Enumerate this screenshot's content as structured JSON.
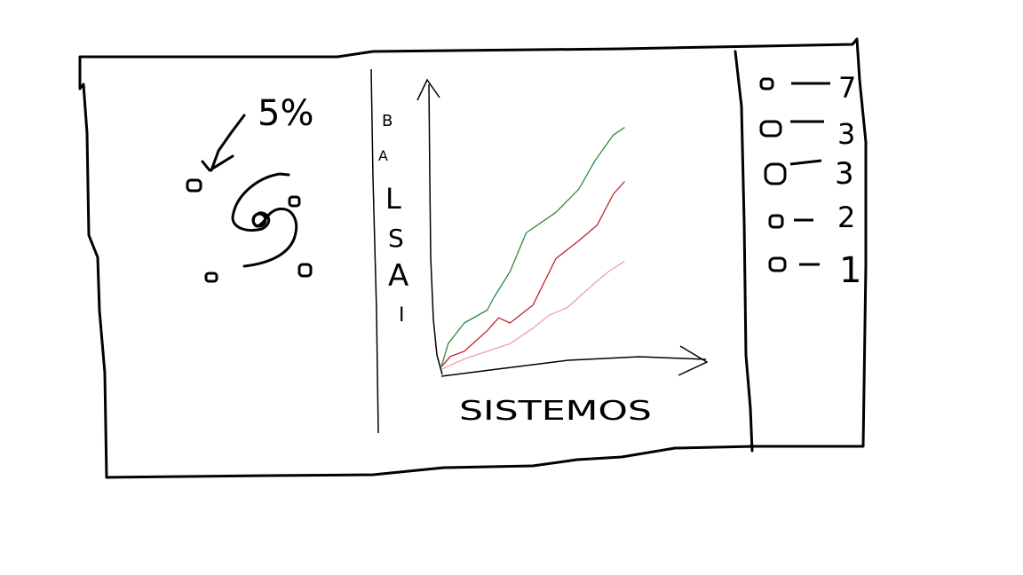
{
  "percent_label": "5%",
  "ylabel_letters": [
    "B",
    "A",
    "L",
    "S",
    "A",
    "I"
  ],
  "xlabel": "SISTEMOS",
  "legend": {
    "items": [
      {
        "value": "7"
      },
      {
        "value": "3"
      },
      {
        "value": "3"
      },
      {
        "value": "2"
      },
      {
        "value": "1"
      }
    ]
  },
  "chart_data": {
    "type": "line",
    "title": "",
    "xlabel": "SISTEMOS",
    "ylabel": "BALSAI",
    "xlim": [
      0,
      10
    ],
    "ylim": [
      0,
      10
    ],
    "series": [
      {
        "color": "#2e8b3a",
        "x": [
          0,
          0.3,
          1,
          2,
          2.3,
          3,
          3.7,
          5,
          6,
          6.7,
          7.5,
          8
        ],
        "y": [
          0.3,
          1.2,
          2,
          2.5,
          3,
          4,
          5.5,
          6.3,
          7.2,
          8.3,
          9.3,
          9.6
        ]
      },
      {
        "color": "#c0202c",
        "x": [
          0,
          0.4,
          1,
          2,
          2.5,
          3,
          4,
          5,
          6,
          6.8,
          7.5,
          8
        ],
        "y": [
          0.3,
          0.7,
          0.9,
          1.7,
          2.2,
          2,
          2.7,
          4.5,
          5.2,
          5.8,
          7,
          7.5
        ]
      },
      {
        "color": "#f0a0a8",
        "x": [
          0,
          0.5,
          1,
          2,
          3,
          4,
          4.7,
          5.5,
          6.5,
          7.3,
          8
        ],
        "y": [
          0.2,
          0.4,
          0.6,
          0.9,
          1.2,
          1.8,
          2.3,
          2.6,
          3.4,
          4,
          4.4
        ]
      }
    ]
  }
}
